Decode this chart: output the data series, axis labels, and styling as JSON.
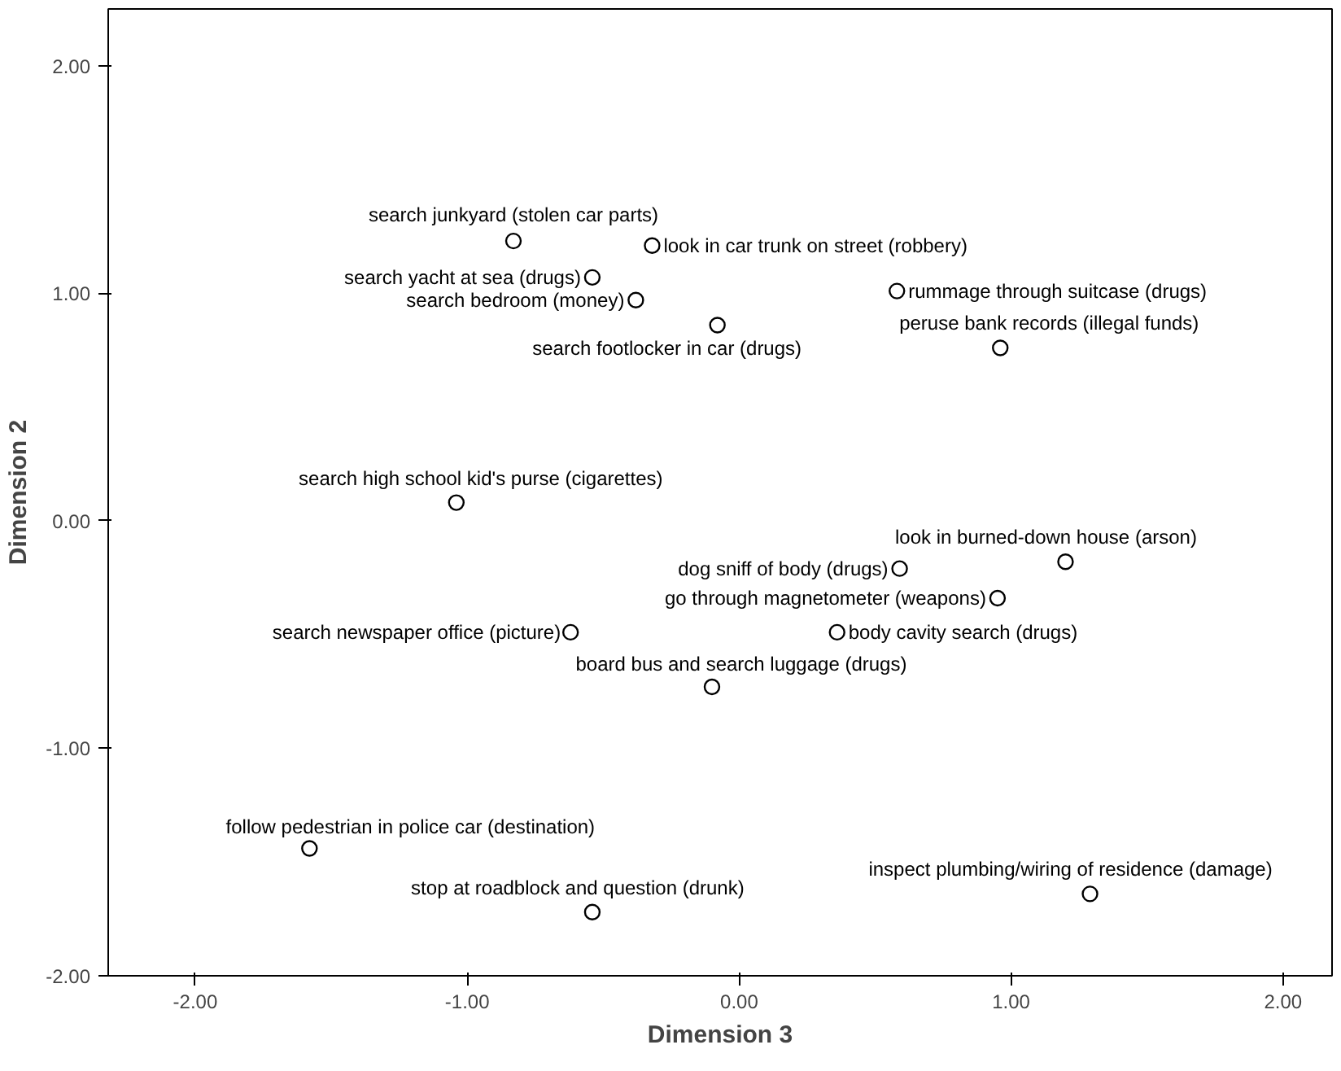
{
  "chart_data": {
    "type": "scatter",
    "xlabel": "Dimension 3",
    "ylabel": "Dimension 2",
    "marker": "circle",
    "xlim": [
      -2.32,
      2.18
    ],
    "ylim": [
      -2.0,
      2.25
    ],
    "xticks": [
      {
        "value": -2,
        "label": "-2.00"
      },
      {
        "value": -1,
        "label": "-1.00"
      },
      {
        "value": 0,
        "label": "0.00"
      },
      {
        "value": 1,
        "label": "1.00"
      },
      {
        "value": 2,
        "label": "2.00"
      }
    ],
    "yticks": [
      {
        "value": -2,
        "label": "-2.00"
      },
      {
        "value": -1,
        "label": "-1.00"
      },
      {
        "value": 0,
        "label": "0.00"
      },
      {
        "value": 1,
        "label": "1.00"
      },
      {
        "value": 2,
        "label": "2.00"
      }
    ],
    "series": [
      {
        "color": "#000000",
        "x": [
          -0.83,
          -0.32,
          -0.54,
          -0.38,
          0.58,
          -0.08,
          0.96,
          -1.04,
          1.2,
          0.59,
          0.95,
          -0.62,
          0.36,
          -0.1,
          -1.58,
          1.29,
          -0.54
        ],
        "values": [
          1.23,
          1.21,
          1.07,
          0.97,
          1.01,
          0.86,
          0.76,
          0.08,
          -0.18,
          -0.21,
          -0.34,
          -0.49,
          -0.49,
          -0.73,
          -1.44,
          -1.64,
          -1.72
        ]
      }
    ],
    "annotations": [
      {
        "text": "search junkyard (stolen car parts)",
        "x": -0.83,
        "y": 1.23
      },
      {
        "text": "look in car trunk on street (robbery)",
        "x": -0.32,
        "y": 1.21
      },
      {
        "text": "search yacht at sea (drugs)",
        "x": -0.54,
        "y": 1.07
      },
      {
        "text": "search bedroom (money)",
        "x": -0.38,
        "y": 0.97
      },
      {
        "text": "rummage through suitcase (drugs)",
        "x": 0.58,
        "y": 1.01
      },
      {
        "text": "search footlocker in car (drugs)",
        "x": -0.08,
        "y": 0.86
      },
      {
        "text": "peruse bank records (illegal funds)",
        "x": 0.96,
        "y": 0.76
      },
      {
        "text": "search high school kid's purse (cigarettes)",
        "x": -1.04,
        "y": 0.08
      },
      {
        "text": "look in burned-down house (arson)",
        "x": 1.2,
        "y": -0.18
      },
      {
        "text": "dog sniff of body (drugs)",
        "x": 0.59,
        "y": -0.21
      },
      {
        "text": "go through magnetometer (weapons)",
        "x": 0.95,
        "y": -0.34
      },
      {
        "text": "search newspaper office (picture)",
        "x": -0.62,
        "y": -0.49
      },
      {
        "text": "body cavity search (drugs)",
        "x": 0.36,
        "y": -0.49
      },
      {
        "text": "board bus and search luggage (drugs)",
        "x": -0.1,
        "y": -0.73
      },
      {
        "text": "follow pedestrian in police car (destination)",
        "x": -1.58,
        "y": -1.44
      },
      {
        "text": "inspect plumbing/wiring of residence (damage)",
        "x": 1.29,
        "y": -1.64
      },
      {
        "text": "stop at roadblock and question (drunk)",
        "x": -0.54,
        "y": -1.72
      }
    ]
  }
}
